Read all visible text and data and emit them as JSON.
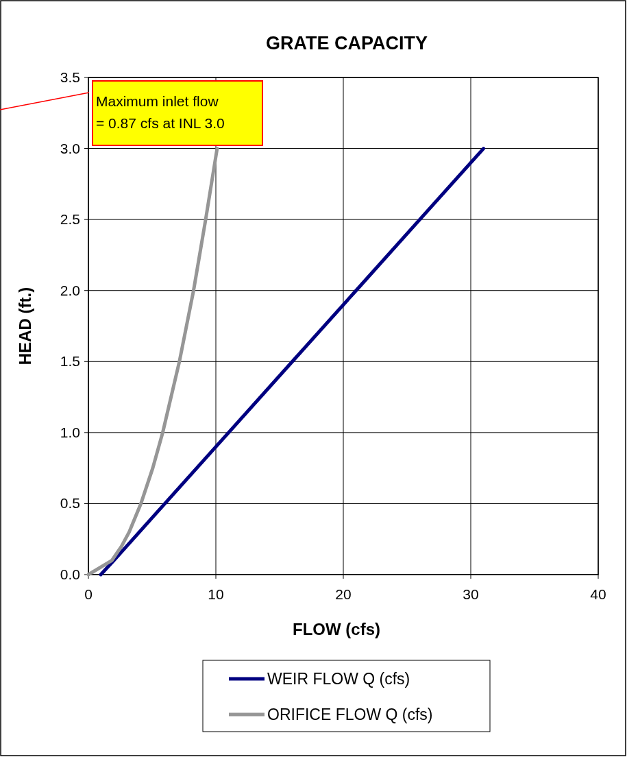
{
  "chart_data": {
    "type": "line",
    "title": "GRATE CAPACITY",
    "xlabel": "FLOW (cfs)",
    "ylabel": "HEAD (ft.)",
    "xlim": [
      0,
      40
    ],
    "xticks": [
      0,
      10,
      20,
      30,
      40
    ],
    "ylim": [
      0,
      3.5
    ],
    "yticks": [
      {
        "value": 0,
        "label": "0.0"
      },
      {
        "value": 0.5,
        "label": "0.5"
      },
      {
        "value": 1,
        "label": "1.0"
      },
      {
        "value": 1.5,
        "label": "1.5"
      },
      {
        "value": 2,
        "label": "2.0"
      },
      {
        "value": 2.5,
        "label": "2.5"
      },
      {
        "value": 3,
        "label": "3.0"
      },
      {
        "value": 3.5,
        "label": "3.5"
      }
    ],
    "grid": true,
    "legend": "bottom",
    "marker": "none",
    "line_style": "solid",
    "series": [
      {
        "name": "WEIR FLOW Q (cfs)",
        "color": "#000080",
        "x": [
          0.97,
          2.0,
          3.0,
          5.0,
          11.0,
          16.0,
          21.0,
          26.0,
          31.0
        ],
        "values": [
          0,
          0.1,
          0.2,
          0.4,
          1.0,
          1.5,
          2.0,
          2.5,
          3.0
        ]
      },
      {
        "name": "ORIFICE FLOW Q (cfs)",
        "color": "#969696",
        "x": [
          0,
          1.84,
          2.6,
          3.2,
          4.12,
          5.05,
          5.83,
          7.14,
          8.25,
          9.2,
          10.1
        ],
        "values": [
          0,
          0.1,
          0.2,
          0.3,
          0.5,
          0.75,
          1.0,
          1.5,
          2.0,
          2.5,
          3.0
        ]
      }
    ],
    "annotations": [
      "Maximum inlet flow\n= 0.87 cfs at INL 3.0"
    ]
  }
}
